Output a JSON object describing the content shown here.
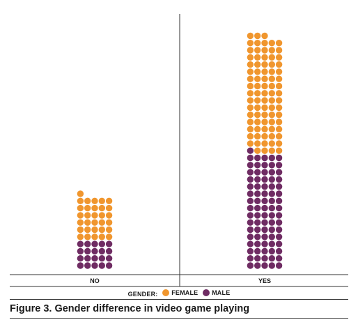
{
  "chart_data": {
    "type": "waffle-column",
    "title": "Figure 3. Gender difference in video game playing",
    "categories": [
      "NO",
      "YES"
    ],
    "series": [
      {
        "name": "MALE",
        "values": [
          20,
          81
        ]
      },
      {
        "name": "FEMALE",
        "values": [
          31,
          82
        ]
      }
    ],
    "dots_per_row": 5,
    "legend": {
      "title": "GENDER:",
      "position": "bottom"
    }
  },
  "colors": {
    "FEMALE": "#F0962E",
    "MALE": "#6F2C63",
    "axis": "#333333"
  }
}
